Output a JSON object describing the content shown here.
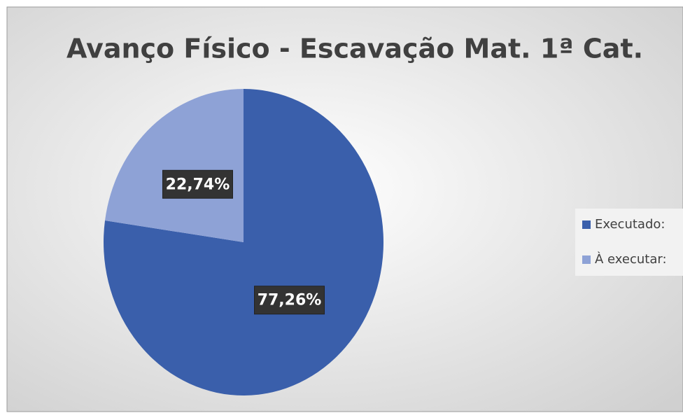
{
  "chart_data": {
    "type": "pie",
    "title": "Avanço Físico - Escavação Mat. 1ª Cat.",
    "categories": [
      "Executado:",
      "À executar:"
    ],
    "values": [
      77.26,
      22.74
    ],
    "value_labels": [
      "77,26%",
      "22,74%"
    ],
    "colors": [
      "#3a5fab",
      "#8ea2d6"
    ],
    "legend": "right"
  }
}
